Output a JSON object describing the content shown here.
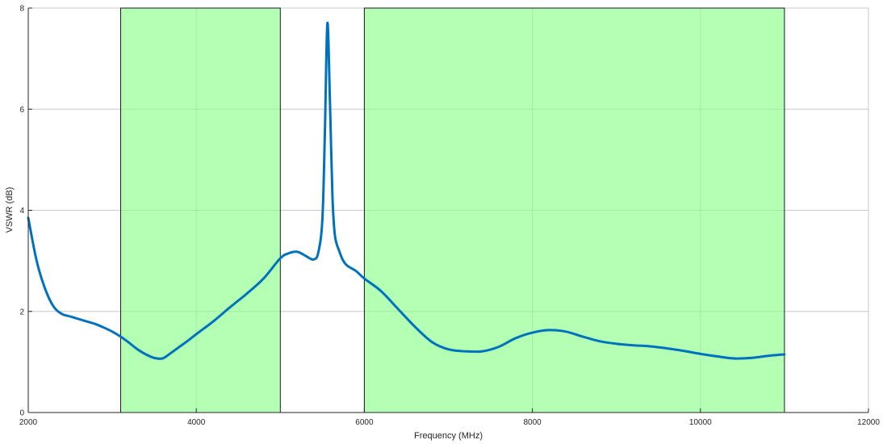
{
  "chart_data": {
    "type": "line",
    "title": "",
    "xlabel": "Frequency (MHz)",
    "ylabel": "VSWR (dB)",
    "xlim": [
      2000,
      12000
    ],
    "ylim": [
      0,
      8
    ],
    "xticks": [
      2000,
      4000,
      6000,
      8000,
      10000,
      12000
    ],
    "yticks": [
      0,
      2,
      4,
      6,
      8
    ],
    "grid": true,
    "colors": {
      "line": "#0072BD",
      "band_fill": "#b3ffb3",
      "band_edge": "#1a1a1a",
      "grid": "#dcdcdc",
      "axis": "#262626"
    },
    "bands": [
      {
        "x_start": 3100,
        "x_end": 5000
      },
      {
        "x_start": 6000,
        "x_end": 11000
      }
    ],
    "series": [
      {
        "x": [
          2000,
          2100,
          2200,
          2300,
          2400,
          2500,
          2600,
          2700,
          2800,
          2900,
          3000,
          3100,
          3200,
          3300,
          3400,
          3500,
          3600,
          3700,
          3800,
          3900,
          4000,
          4200,
          4400,
          4600,
          4800,
          5000,
          5100,
          5200,
          5300,
          5350,
          5400,
          5450,
          5500,
          5530,
          5560,
          5590,
          5620,
          5650,
          5700,
          5750,
          5800,
          5900,
          6000,
          6200,
          6400,
          6600,
          6800,
          7000,
          7200,
          7400,
          7600,
          7800,
          8000,
          8200,
          8400,
          8600,
          8800,
          9000,
          9200,
          9400,
          9600,
          9800,
          10000,
          10200,
          10400,
          10600,
          10800,
          11000
        ],
        "y": [
          3.85,
          3.0,
          2.45,
          2.1,
          1.95,
          1.9,
          1.85,
          1.8,
          1.75,
          1.68,
          1.6,
          1.5,
          1.38,
          1.25,
          1.15,
          1.08,
          1.07,
          1.18,
          1.3,
          1.42,
          1.55,
          1.8,
          2.08,
          2.35,
          2.65,
          3.05,
          3.15,
          3.18,
          3.1,
          3.05,
          3.03,
          3.15,
          3.8,
          5.5,
          7.7,
          6.2,
          4.3,
          3.5,
          3.2,
          3.0,
          2.9,
          2.8,
          2.65,
          2.4,
          2.05,
          1.7,
          1.4,
          1.25,
          1.21,
          1.21,
          1.3,
          1.47,
          1.58,
          1.63,
          1.6,
          1.5,
          1.41,
          1.36,
          1.33,
          1.31,
          1.27,
          1.22,
          1.16,
          1.11,
          1.07,
          1.08,
          1.12,
          1.15
        ]
      }
    ]
  }
}
